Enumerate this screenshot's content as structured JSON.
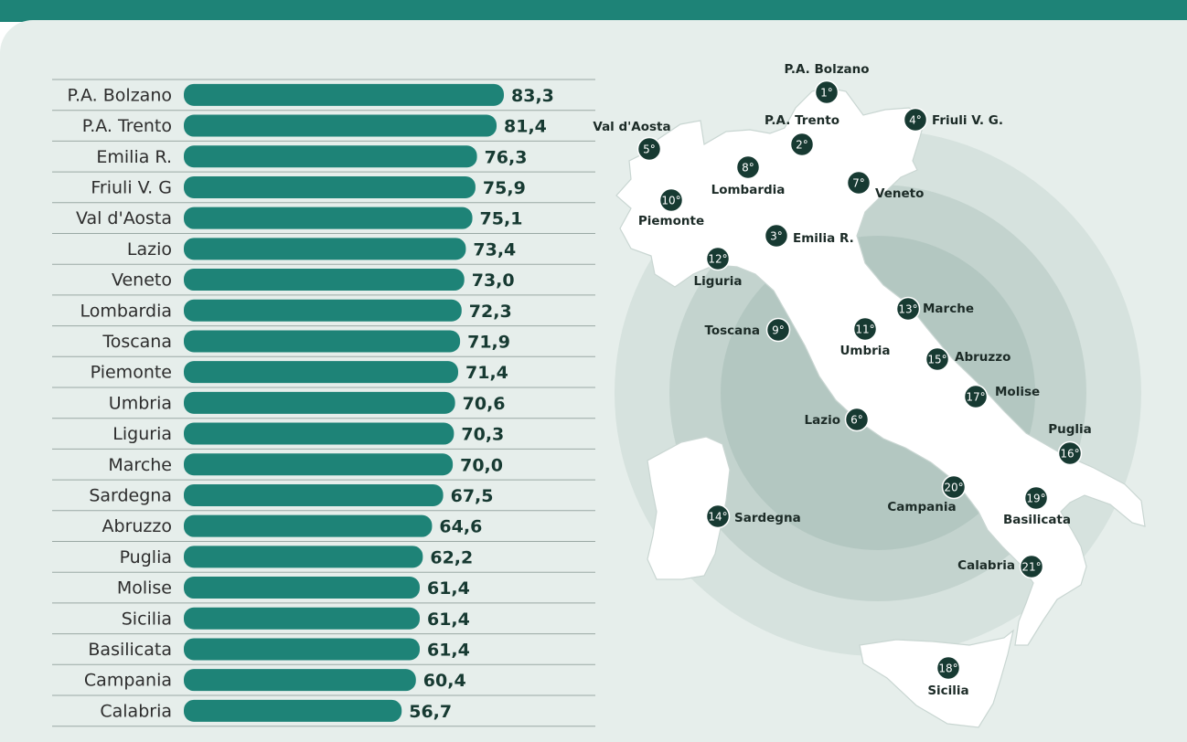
{
  "colors": {
    "bar": "#1e8377",
    "header": "#1e8377",
    "panel": "#e6eeeb",
    "rank_marker": "#173a32",
    "value_text": "#173a32"
  },
  "chart_data": {
    "type": "bar",
    "orientation": "horizontal",
    "categories": [
      "P.A. Bolzano",
      "P.A. Trento",
      "Emilia R.",
      "Friuli V. G",
      "Val d'Aosta",
      "Lazio",
      "Veneto",
      "Lombardia",
      "Toscana",
      "Piemonte",
      "Umbria",
      "Liguria",
      "Marche",
      "Sardegna",
      "Abruzzo",
      "Puglia",
      "Molise",
      "Sicilia",
      "Basilicata",
      "Campania",
      "Calabria"
    ],
    "values": [
      83.3,
      81.4,
      76.3,
      75.9,
      75.1,
      73.4,
      73.0,
      72.3,
      71.9,
      71.4,
      70.6,
      70.3,
      70.0,
      67.5,
      64.6,
      62.2,
      61.4,
      61.4,
      61.4,
      60.4,
      56.7
    ],
    "value_labels": [
      "83,3",
      "81,4",
      "76,3",
      "75,9",
      "75,1",
      "73,4",
      "73,0",
      "72,3",
      "71,9",
      "71,4",
      "70,6",
      "70,3",
      "70,0",
      "67,5",
      "64,6",
      "62,2",
      "61,4",
      "61,4",
      "61,4",
      "60,4",
      "56,7"
    ],
    "title": "",
    "xlabel": "",
    "ylabel": "",
    "xlim": [
      0,
      83.3
    ],
    "grid": false
  },
  "map": {
    "regions": [
      {
        "name": "P.A. Bolzano",
        "rank": "1°"
      },
      {
        "name": "P.A. Trento",
        "rank": "2°"
      },
      {
        "name": "Emilia R.",
        "rank": "3°"
      },
      {
        "name": "Friuli V. G.",
        "rank": "4°"
      },
      {
        "name": "Val d'Aosta",
        "rank": "5°"
      },
      {
        "name": "Lazio",
        "rank": "6°"
      },
      {
        "name": "Veneto",
        "rank": "7°"
      },
      {
        "name": "Lombardia",
        "rank": "8°"
      },
      {
        "name": "Toscana",
        "rank": "9°"
      },
      {
        "name": "Piemonte",
        "rank": "10°"
      },
      {
        "name": "Umbria",
        "rank": "11°"
      },
      {
        "name": "Liguria",
        "rank": "12°"
      },
      {
        "name": "Marche",
        "rank": "13°"
      },
      {
        "name": "Sardegna",
        "rank": "14°"
      },
      {
        "name": "Abruzzo",
        "rank": "15°"
      },
      {
        "name": "Puglia",
        "rank": "16°"
      },
      {
        "name": "Molise",
        "rank": "17°"
      },
      {
        "name": "Sicilia",
        "rank": "18°"
      },
      {
        "name": "Basilicata",
        "rank": "19°"
      },
      {
        "name": "Campania",
        "rank": "20°"
      },
      {
        "name": "Calabria",
        "rank": "21°"
      }
    ]
  }
}
